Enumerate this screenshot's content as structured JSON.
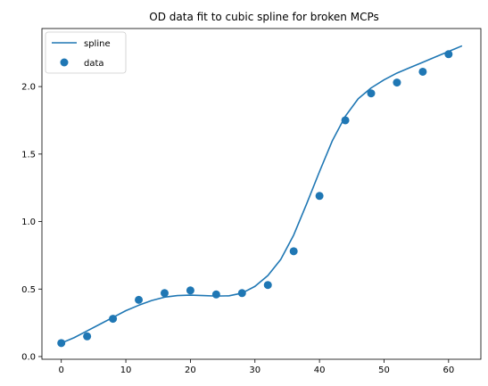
{
  "chart_data": {
    "type": "line",
    "title": "OD data fit to cubic spline for broken MCPs",
    "xlabel": "",
    "ylabel": "",
    "xlim": [
      -3,
      65
    ],
    "ylim": [
      -0.02,
      2.43
    ],
    "x_ticks": [
      0,
      10,
      20,
      30,
      40,
      50,
      60
    ],
    "y_ticks": [
      0.0,
      0.5,
      1.0,
      1.5,
      2.0
    ],
    "y_tick_labels": [
      "0.0",
      "0.5",
      "1.0",
      "1.5",
      "2.0"
    ],
    "grid": false,
    "legend_position": "top-left",
    "colors": {
      "series": "#1f77b4"
    },
    "series": [
      {
        "name": "spline",
        "type": "line",
        "x": [
          0,
          2,
          4,
          6,
          8,
          10,
          12,
          14,
          16,
          18,
          20,
          22,
          24,
          26,
          28,
          30,
          32,
          34,
          36,
          38,
          40,
          42,
          44,
          46,
          48,
          50,
          52,
          54,
          56,
          58,
          60,
          62
        ],
        "y": [
          0.1,
          0.14,
          0.19,
          0.24,
          0.29,
          0.34,
          0.38,
          0.415,
          0.44,
          0.452,
          0.455,
          0.452,
          0.448,
          0.45,
          0.47,
          0.52,
          0.6,
          0.72,
          0.9,
          1.13,
          1.37,
          1.6,
          1.78,
          1.91,
          1.99,
          2.05,
          2.1,
          2.14,
          2.18,
          2.22,
          2.26,
          2.3
        ]
      },
      {
        "name": "data",
        "type": "scatter",
        "x": [
          0,
          4,
          8,
          12,
          16,
          20,
          24,
          28,
          32,
          36,
          40,
          44,
          48,
          52,
          56,
          60
        ],
        "y": [
          0.1,
          0.15,
          0.28,
          0.42,
          0.47,
          0.49,
          0.46,
          0.47,
          0.53,
          0.78,
          1.19,
          1.75,
          1.95,
          2.03,
          2.11,
          2.24
        ]
      }
    ]
  }
}
